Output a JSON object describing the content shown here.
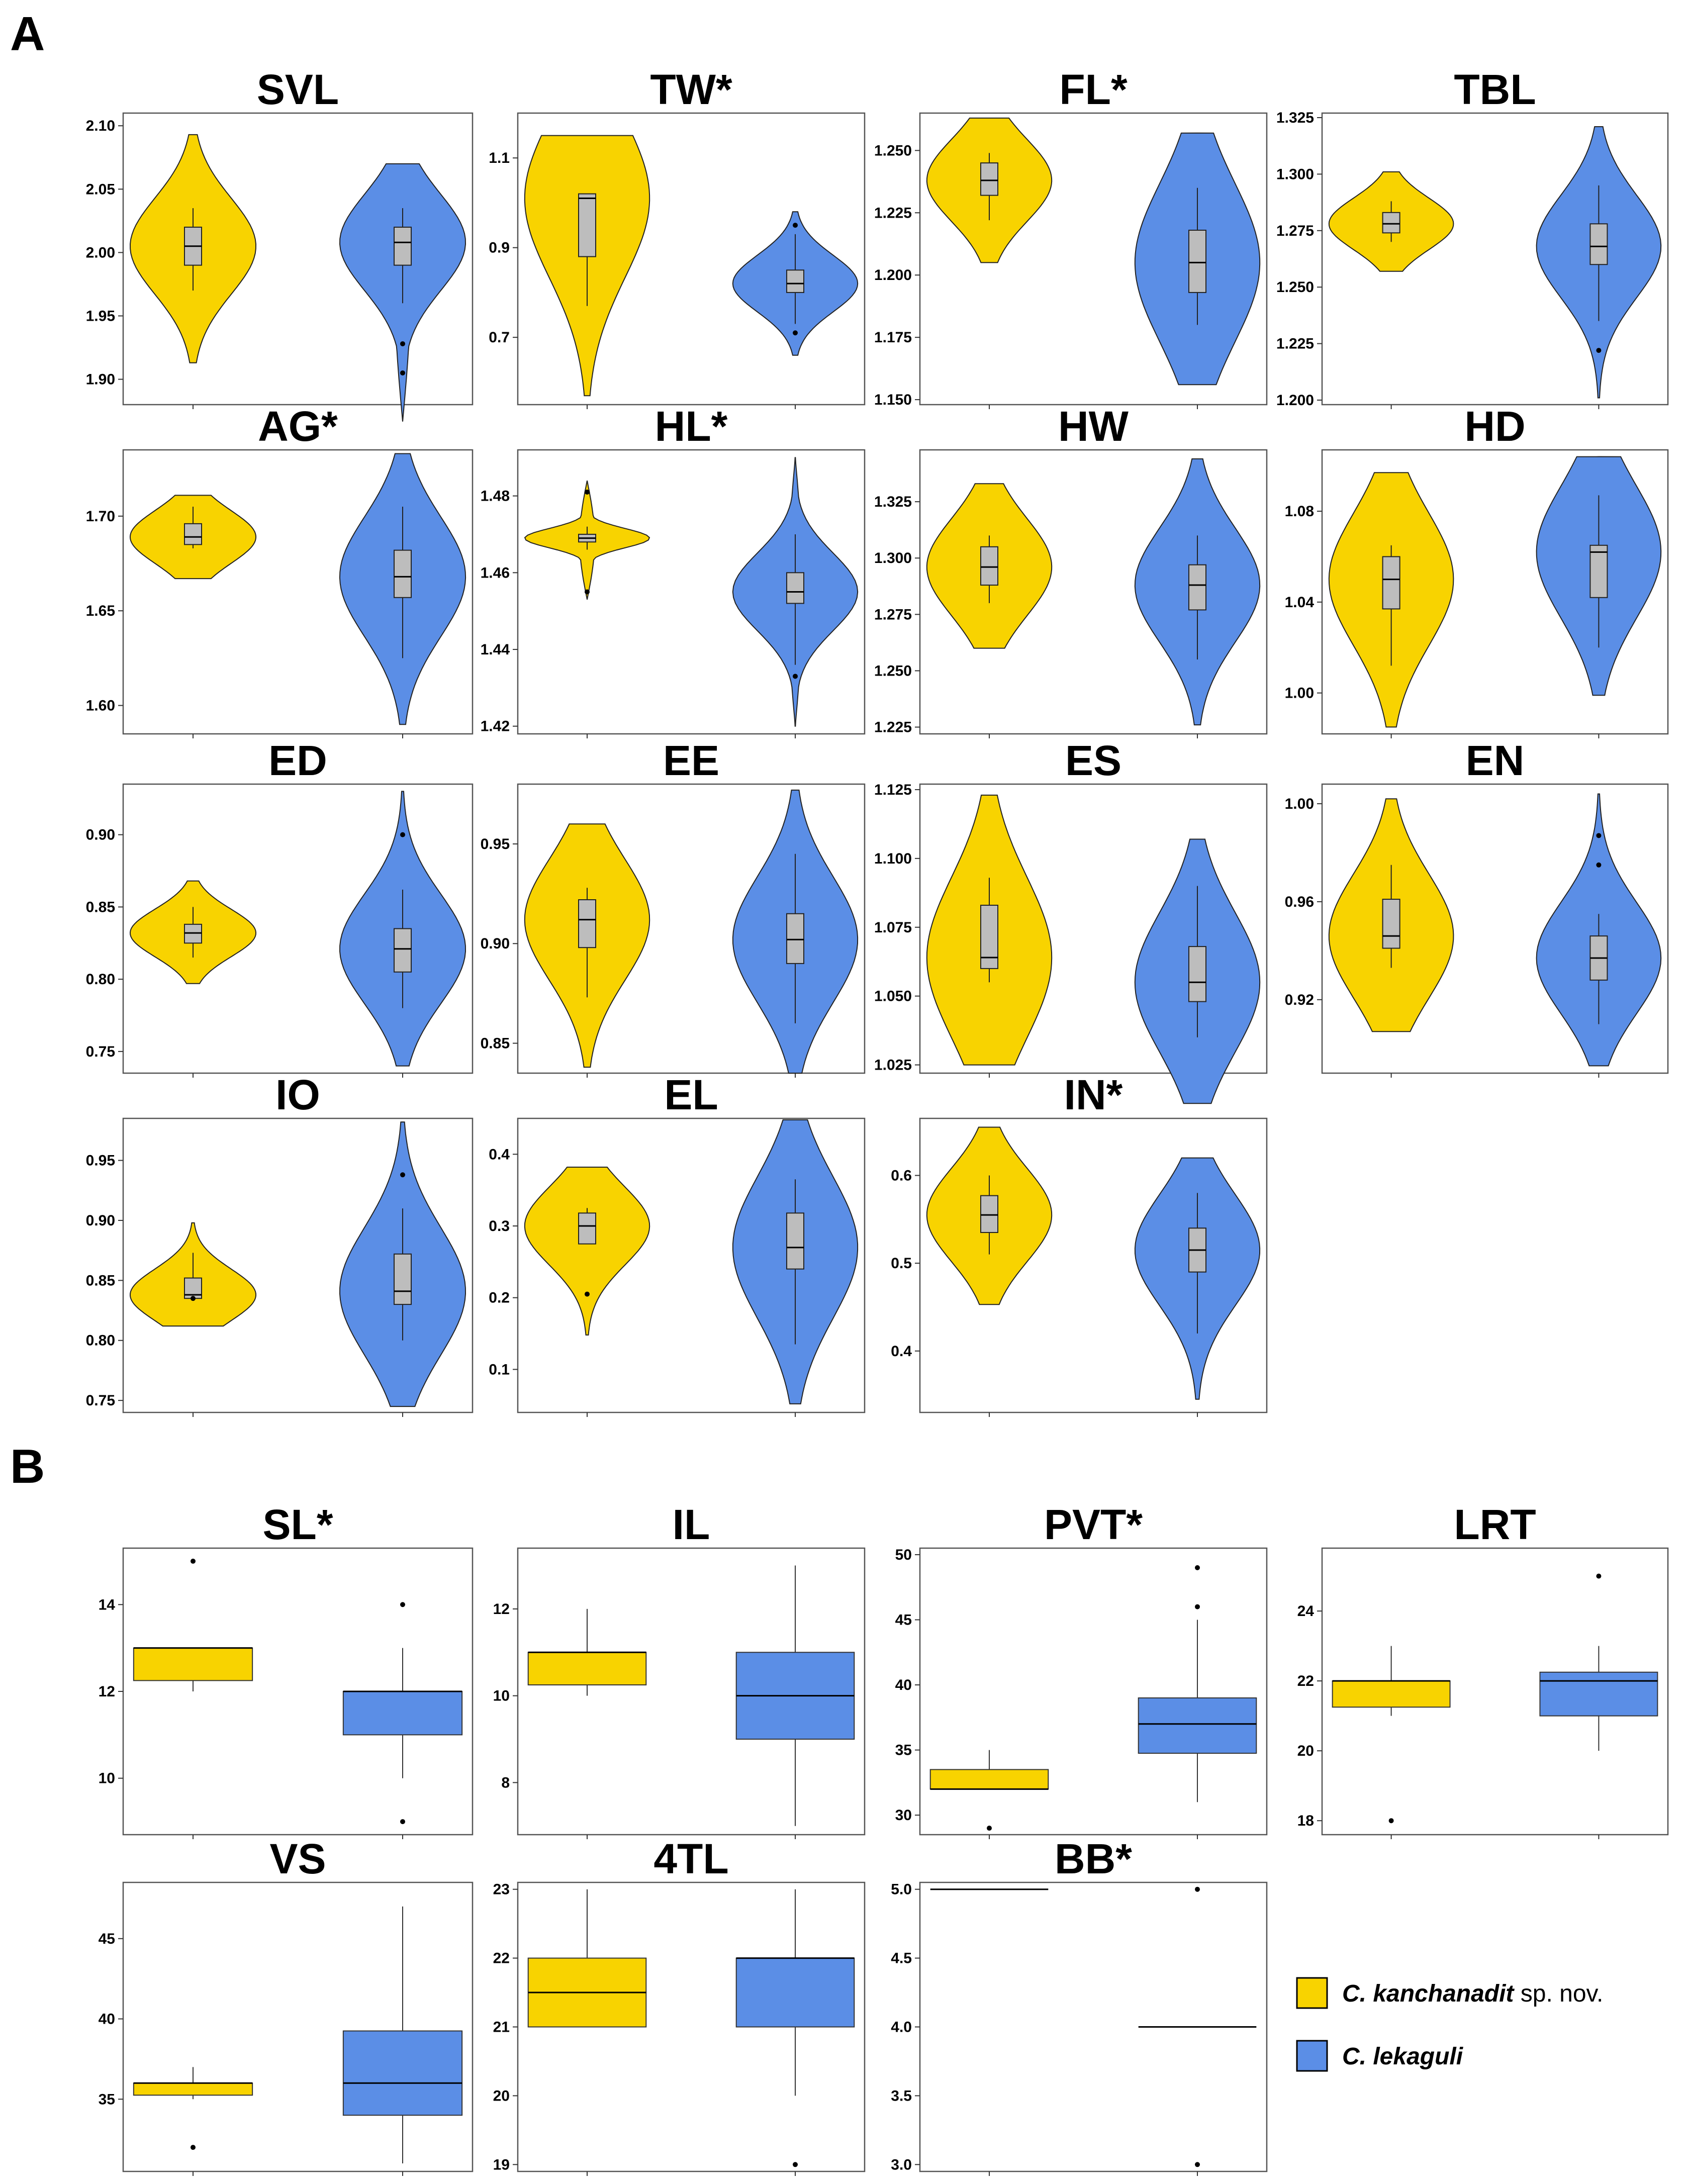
{
  "panels": {
    "A": "A",
    "B": "B"
  },
  "colors": {
    "group1": "#f8d300",
    "group2": "#5b8ee6",
    "box_inner": "#bdbdbd",
    "frame": "#555555"
  },
  "legend": {
    "group1_name": "C. kanchanadit",
    "group1_suffix": " sp. nov.",
    "group2_name": "C. lekaguli"
  },
  "chart_data": [
    {
      "type": "violin",
      "title": "SVL",
      "yticks": [
        "1.90",
        "1.95",
        "2.00",
        "2.05",
        "2.10"
      ],
      "ylim": [
        1.88,
        2.11
      ],
      "groups": [
        {
          "q1": 1.99,
          "med": 2.005,
          "q3": 2.02,
          "wlo": 1.97,
          "whi": 2.035,
          "vmin": 1.913,
          "vmax": 2.093,
          "outliers": []
        },
        {
          "q1": 1.99,
          "med": 2.008,
          "q3": 2.02,
          "wlo": 1.96,
          "whi": 2.035,
          "vmin": 1.867,
          "vmax": 2.07,
          "outliers": [
            1.928,
            1.905
          ]
        }
      ]
    },
    {
      "type": "violin",
      "title": "TW*",
      "yticks": [
        "0.7",
        "0.9",
        "1.1"
      ],
      "ylim": [
        0.55,
        1.2
      ],
      "groups": [
        {
          "q1": 0.88,
          "med": 1.01,
          "q3": 1.02,
          "wlo": 0.77,
          "whi": 1.02,
          "vmin": 0.57,
          "vmax": 1.15,
          "outliers": []
        },
        {
          "q1": 0.8,
          "med": 0.82,
          "q3": 0.85,
          "wlo": 0.73,
          "whi": 0.93,
          "vmin": 0.66,
          "vmax": 0.98,
          "outliers": [
            0.95,
            0.71
          ]
        }
      ]
    },
    {
      "type": "violin",
      "title": "FL*",
      "yticks": [
        "1.150",
        "1.175",
        "1.200",
        "1.225",
        "1.250"
      ],
      "ylim": [
        1.148,
        1.265
      ],
      "groups": [
        {
          "q1": 1.232,
          "med": 1.238,
          "q3": 1.245,
          "wlo": 1.222,
          "whi": 1.249,
          "vmin": 1.205,
          "vmax": 1.263,
          "outliers": []
        },
        {
          "q1": 1.193,
          "med": 1.205,
          "q3": 1.218,
          "wlo": 1.18,
          "whi": 1.235,
          "vmin": 1.156,
          "vmax": 1.257,
          "outliers": []
        }
      ]
    },
    {
      "type": "violin",
      "title": "TBL",
      "yticks": [
        "1.200",
        "1.225",
        "1.250",
        "1.275",
        "1.300",
        "1.325"
      ],
      "ylim": [
        1.198,
        1.327
      ],
      "groups": [
        {
          "q1": 1.274,
          "med": 1.278,
          "q3": 1.283,
          "wlo": 1.27,
          "whi": 1.288,
          "vmin": 1.257,
          "vmax": 1.301,
          "outliers": []
        },
        {
          "q1": 1.26,
          "med": 1.268,
          "q3": 1.278,
          "wlo": 1.235,
          "whi": 1.295,
          "vmin": 1.201,
          "vmax": 1.321,
          "outliers": [
            1.222
          ]
        }
      ]
    },
    {
      "type": "violin",
      "title": "AG*",
      "yticks": [
        "1.60",
        "1.65",
        "1.70"
      ],
      "ylim": [
        1.585,
        1.735
      ],
      "groups": [
        {
          "q1": 1.685,
          "med": 1.689,
          "q3": 1.696,
          "wlo": 1.683,
          "whi": 1.705,
          "vmin": 1.667,
          "vmax": 1.711,
          "outliers": []
        },
        {
          "q1": 1.657,
          "med": 1.668,
          "q3": 1.682,
          "wlo": 1.625,
          "whi": 1.705,
          "vmin": 1.59,
          "vmax": 1.733,
          "outliers": []
        }
      ]
    },
    {
      "type": "violin",
      "title": "HL*",
      "yticks": [
        "1.42",
        "1.44",
        "1.46",
        "1.48"
      ],
      "ylim": [
        1.418,
        1.492
      ],
      "groups": [
        {
          "q1": 1.468,
          "med": 1.469,
          "q3": 1.47,
          "wlo": 1.466,
          "whi": 1.472,
          "vmin": 1.453,
          "vmax": 1.484,
          "outliers": [
            1.481,
            1.455
          ]
        },
        {
          "q1": 1.452,
          "med": 1.455,
          "q3": 1.46,
          "wlo": 1.436,
          "whi": 1.47,
          "vmin": 1.42,
          "vmax": 1.49,
          "outliers": [
            1.433
          ]
        }
      ]
    },
    {
      "type": "violin",
      "title": "HW",
      "yticks": [
        "1.225",
        "1.250",
        "1.275",
        "1.300",
        "1.325"
      ],
      "ylim": [
        1.222,
        1.348
      ],
      "groups": [
        {
          "q1": 1.288,
          "med": 1.296,
          "q3": 1.305,
          "wlo": 1.28,
          "whi": 1.31,
          "vmin": 1.26,
          "vmax": 1.333,
          "outliers": []
        },
        {
          "q1": 1.277,
          "med": 1.288,
          "q3": 1.297,
          "wlo": 1.255,
          "whi": 1.31,
          "vmin": 1.226,
          "vmax": 1.344,
          "outliers": []
        }
      ]
    },
    {
      "type": "violin",
      "title": "HD",
      "yticks": [
        "1.00",
        "1.04",
        "1.08"
      ],
      "ylim": [
        0.982,
        1.107
      ],
      "groups": [
        {
          "q1": 1.037,
          "med": 1.05,
          "q3": 1.06,
          "wlo": 1.012,
          "whi": 1.065,
          "vmin": 0.985,
          "vmax": 1.097,
          "outliers": []
        },
        {
          "q1": 1.042,
          "med": 1.062,
          "q3": 1.065,
          "wlo": 1.02,
          "whi": 1.087,
          "vmin": 0.999,
          "vmax": 1.104,
          "outliers": []
        }
      ]
    },
    {
      "type": "violin",
      "title": "ED",
      "yticks": [
        "0.75",
        "0.80",
        "0.85",
        "0.90"
      ],
      "ylim": [
        0.735,
        0.935
      ],
      "groups": [
        {
          "q1": 0.825,
          "med": 0.832,
          "q3": 0.838,
          "wlo": 0.815,
          "whi": 0.85,
          "vmin": 0.797,
          "vmax": 0.868,
          "outliers": []
        },
        {
          "q1": 0.805,
          "med": 0.821,
          "q3": 0.835,
          "wlo": 0.78,
          "whi": 0.862,
          "vmin": 0.74,
          "vmax": 0.93,
          "outliers": [
            0.9
          ]
        }
      ]
    },
    {
      "type": "violin",
      "title": "EE",
      "yticks": [
        "0.85",
        "0.90",
        "0.95"
      ],
      "ylim": [
        0.835,
        0.98
      ],
      "groups": [
        {
          "q1": 0.898,
          "med": 0.912,
          "q3": 0.922,
          "wlo": 0.873,
          "whi": 0.928,
          "vmin": 0.838,
          "vmax": 0.96,
          "outliers": []
        },
        {
          "q1": 0.89,
          "med": 0.902,
          "q3": 0.915,
          "wlo": 0.86,
          "whi": 0.945,
          "vmin": 0.835,
          "vmax": 0.977,
          "outliers": []
        }
      ]
    },
    {
      "type": "violin",
      "title": "ES",
      "yticks": [
        "1.025",
        "1.050",
        "1.075",
        "1.100",
        "1.125"
      ],
      "ylim": [
        1.022,
        1.127
      ],
      "groups": [
        {
          "q1": 1.06,
          "med": 1.064,
          "q3": 1.083,
          "wlo": 1.055,
          "whi": 1.093,
          "vmin": 1.025,
          "vmax": 1.123,
          "outliers": []
        },
        {
          "q1": 1.048,
          "med": 1.055,
          "q3": 1.068,
          "wlo": 1.035,
          "whi": 1.09,
          "vmin": 1.011,
          "vmax": 1.107,
          "outliers": []
        }
      ]
    },
    {
      "type": "violin",
      "title": "EN",
      "yticks": [
        "0.92",
        "0.96",
        "1.00"
      ],
      "ylim": [
        0.89,
        1.008
      ],
      "groups": [
        {
          "q1": 0.941,
          "med": 0.946,
          "q3": 0.961,
          "wlo": 0.933,
          "whi": 0.975,
          "vmin": 0.907,
          "vmax": 1.002,
          "outliers": []
        },
        {
          "q1": 0.928,
          "med": 0.937,
          "q3": 0.946,
          "wlo": 0.91,
          "whi": 0.955,
          "vmin": 0.893,
          "vmax": 1.004,
          "outliers": [
            0.987,
            0.975
          ]
        }
      ]
    },
    {
      "type": "violin",
      "title": "IO",
      "yticks": [
        "0.75",
        "0.80",
        "0.85",
        "0.90",
        "0.95"
      ],
      "ylim": [
        0.74,
        0.985
      ],
      "groups": [
        {
          "q1": 0.835,
          "med": 0.838,
          "q3": 0.852,
          "wlo": 0.835,
          "whi": 0.873,
          "vmin": 0.812,
          "vmax": 0.898,
          "outliers": [
            0.835
          ]
        },
        {
          "q1": 0.83,
          "med": 0.841,
          "q3": 0.872,
          "wlo": 0.8,
          "whi": 0.91,
          "vmin": 0.745,
          "vmax": 0.982,
          "outliers": [
            0.938
          ]
        }
      ]
    },
    {
      "type": "violin",
      "title": "EL",
      "yticks": [
        "0.1",
        "0.2",
        "0.3",
        "0.4"
      ],
      "ylim": [
        0.04,
        0.45
      ],
      "groups": [
        {
          "q1": 0.275,
          "med": 0.3,
          "q3": 0.318,
          "wlo": 0.275,
          "whi": 0.325,
          "vmin": 0.148,
          "vmax": 0.382,
          "outliers": [
            0.205
          ]
        },
        {
          "q1": 0.24,
          "med": 0.27,
          "q3": 0.318,
          "wlo": 0.135,
          "whi": 0.365,
          "vmin": 0.052,
          "vmax": 0.448,
          "outliers": []
        }
      ]
    },
    {
      "type": "violin",
      "title": "IN*",
      "yticks": [
        "0.4",
        "0.5",
        "0.6"
      ],
      "ylim": [
        0.33,
        0.665
      ],
      "groups": [
        {
          "q1": 0.535,
          "med": 0.555,
          "q3": 0.577,
          "wlo": 0.51,
          "whi": 0.6,
          "vmin": 0.453,
          "vmax": 0.655,
          "outliers": []
        },
        {
          "q1": 0.49,
          "med": 0.515,
          "q3": 0.54,
          "wlo": 0.42,
          "whi": 0.58,
          "vmin": 0.345,
          "vmax": 0.62,
          "outliers": []
        }
      ]
    },
    {
      "type": "box",
      "title": "SL*",
      "yticks": [
        "10",
        "12",
        "14"
      ],
      "ylim": [
        8.7,
        15.3
      ],
      "groups": [
        {
          "q1": 12.25,
          "med": 13,
          "q3": 13,
          "wlo": 12,
          "whi": 13,
          "outliers": [
            15
          ]
        },
        {
          "q1": 11,
          "med": 12,
          "q3": 12,
          "wlo": 10,
          "whi": 13,
          "outliers": [
            14,
            9
          ]
        }
      ]
    },
    {
      "type": "box",
      "title": "IL",
      "yticks": [
        "8",
        "10",
        "12"
      ],
      "ylim": [
        6.8,
        13.4
      ],
      "groups": [
        {
          "q1": 10.25,
          "med": 11,
          "q3": 11,
          "wlo": 10,
          "whi": 12,
          "outliers": []
        },
        {
          "q1": 9,
          "med": 10,
          "q3": 11,
          "wlo": 7,
          "whi": 13,
          "outliers": []
        }
      ]
    },
    {
      "type": "box",
      "title": "PVT*",
      "yticks": [
        "30",
        "35",
        "40",
        "45",
        "50"
      ],
      "ylim": [
        28.5,
        50.5
      ],
      "groups": [
        {
          "q1": 32,
          "med": 32,
          "q3": 33.5,
          "wlo": 32,
          "whi": 35,
          "outliers": [
            29
          ]
        },
        {
          "q1": 34.75,
          "med": 37,
          "q3": 39,
          "wlo": 31,
          "whi": 45,
          "outliers": [
            49,
            46
          ]
        }
      ]
    },
    {
      "type": "box",
      "title": "LRT",
      "yticks": [
        "18",
        "20",
        "22",
        "24"
      ],
      "ylim": [
        17.6,
        25.8
      ],
      "groups": [
        {
          "q1": 21.25,
          "med": 22,
          "q3": 22,
          "wlo": 21,
          "whi": 23,
          "outliers": [
            18
          ]
        },
        {
          "q1": 21,
          "med": 22,
          "q3": 22.25,
          "wlo": 20,
          "whi": 23,
          "outliers": [
            25
          ]
        }
      ]
    },
    {
      "type": "box",
      "title": "VS",
      "yticks": [
        "35",
        "40",
        "45"
      ],
      "ylim": [
        30.5,
        48.5
      ],
      "groups": [
        {
          "q1": 35.25,
          "med": 36,
          "q3": 36,
          "wlo": 35,
          "whi": 37,
          "outliers": [
            32
          ]
        },
        {
          "q1": 34,
          "med": 36,
          "q3": 39.25,
          "wlo": 31,
          "whi": 47,
          "outliers": []
        }
      ]
    },
    {
      "type": "box",
      "title": "4TL",
      "yticks": [
        "19",
        "20",
        "21",
        "22",
        "23"
      ],
      "ylim": [
        18.9,
        23.1
      ],
      "groups": [
        {
          "q1": 21,
          "med": 21.5,
          "q3": 22,
          "wlo": 21,
          "whi": 23,
          "outliers": []
        },
        {
          "q1": 21,
          "med": 22,
          "q3": 22,
          "wlo": 20,
          "whi": 23,
          "outliers": [
            19
          ]
        }
      ]
    },
    {
      "type": "box",
      "title": "BB*",
      "yticks": [
        "3.0",
        "3.5",
        "4.0",
        "4.5",
        "5.0"
      ],
      "ylim": [
        2.95,
        5.05
      ],
      "groups": [
        {
          "q1": 5,
          "med": 5,
          "q3": 5,
          "wlo": 5,
          "whi": 5,
          "outliers": []
        },
        {
          "q1": 4,
          "med": 4,
          "q3": 4,
          "wlo": 4,
          "whi": 4,
          "outliers": [
            5,
            3
          ]
        }
      ]
    }
  ]
}
